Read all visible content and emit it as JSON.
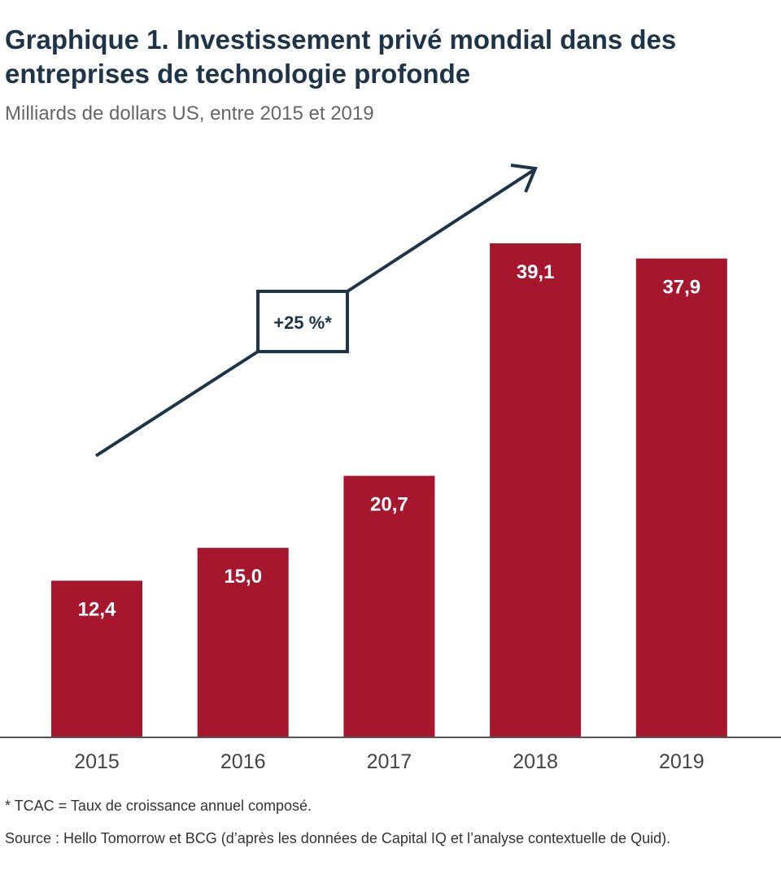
{
  "chart_data": {
    "type": "bar",
    "title": "Graphique 1. Investissement privé mondial dans des entreprises de technologie profonde",
    "subtitle": "Milliards de dollars US, entre 2015 et 2019",
    "categories": [
      "2015",
      "2016",
      "2017",
      "2018",
      "2019"
    ],
    "values": [
      12.4,
      15.0,
      20.7,
      39.1,
      37.9
    ],
    "value_labels": [
      "12,4",
      "15,0",
      "20,7",
      "39,1",
      "37,9"
    ],
    "xlabel": "",
    "ylabel": "",
    "ylim": [
      0,
      58
    ],
    "annotation": "+25 %*",
    "bar_color": "#a6162d",
    "accent_color": "#1d3449"
  },
  "footnote": "* TCAC = Taux de croissance annuel composé.",
  "source": "Source : Hello Tomorrow et BCG (d’après les données de Capital IQ et l’analyse contextuelle de Quid)."
}
